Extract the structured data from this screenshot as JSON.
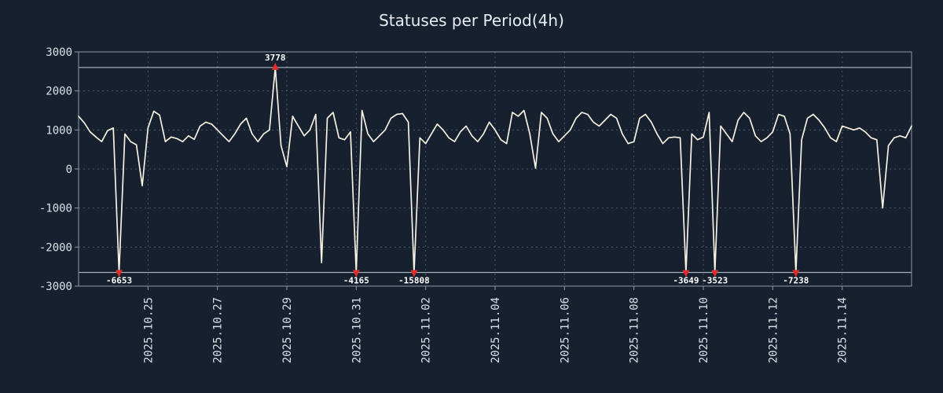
{
  "chart_data": {
    "type": "line",
    "title": "Statuses per Period(4h)",
    "ylim": [
      -3000,
      3000
    ],
    "yticks": [
      -3000,
      -2000,
      -1000,
      0,
      1000,
      2000,
      3000
    ],
    "clip_high": 2600,
    "clip_low": -2650,
    "grid": true,
    "legend": "none",
    "xticks": [
      {
        "index": 12,
        "label": "2025.10.25"
      },
      {
        "index": 24,
        "label": "2025.10.27"
      },
      {
        "index": 36,
        "label": "2025.10.29"
      },
      {
        "index": 48,
        "label": "2025.10.31"
      },
      {
        "index": 60,
        "label": "2025.11.02"
      },
      {
        "index": 72,
        "label": "2025.11.04"
      },
      {
        "index": 84,
        "label": "2025.11.06"
      },
      {
        "index": 96,
        "label": "2025.11.08"
      },
      {
        "index": 108,
        "label": "2025.11.10"
      },
      {
        "index": 120,
        "label": "2025.11.12"
      },
      {
        "index": 132,
        "label": "2025.11.14"
      }
    ],
    "values": [
      1350,
      1180,
      950,
      820,
      700,
      980,
      1050,
      -6653,
      900,
      700,
      620,
      -430,
      1050,
      1480,
      1380,
      700,
      820,
      780,
      700,
      850,
      760,
      1100,
      1200,
      1150,
      1000,
      850,
      700,
      900,
      1150,
      1300,
      900,
      700,
      900,
      1000,
      3778,
      600,
      60,
      1350,
      1100,
      850,
      1000,
      1400,
      -2400,
      1300,
      1450,
      800,
      750,
      950,
      -4165,
      1500,
      900,
      700,
      850,
      1000,
      1300,
      1400,
      1420,
      1200,
      -15808,
      800,
      650,
      900,
      1150,
      1000,
      800,
      700,
      950,
      1100,
      850,
      700,
      900,
      1200,
      1000,
      750,
      650,
      1450,
      1350,
      1500,
      900,
      20,
      1450,
      1300,
      900,
      700,
      850,
      1000,
      1300,
      1450,
      1400,
      1200,
      1100,
      1250,
      1400,
      1300,
      900,
      650,
      700,
      1300,
      1400,
      1200,
      900,
      650,
      800,
      820,
      800,
      -3649,
      900,
      750,
      820,
      1450,
      -3523,
      1100,
      900,
      700,
      1250,
      1450,
      1300,
      850,
      700,
      800,
      950,
      1400,
      1350,
      900,
      -7238,
      750,
      1300,
      1400,
      1250,
      1050,
      800,
      700,
      1100,
      1050,
      1000,
      1050,
      950,
      800,
      750,
      -1000,
      600,
      800,
      850,
      800,
      1100
    ],
    "annotations": [
      {
        "index": 7,
        "value": -6653,
        "label": "-6653",
        "direction": "down"
      },
      {
        "index": 34,
        "value": 3778,
        "label": "3778",
        "direction": "up"
      },
      {
        "index": 48,
        "value": -4165,
        "label": "-4165",
        "direction": "down"
      },
      {
        "index": 58,
        "value": -15808,
        "label": "-15808",
        "direction": "down"
      },
      {
        "index": 105,
        "value": -3649,
        "label": "-3649",
        "direction": "down"
      },
      {
        "index": 110,
        "value": -3523,
        "label": "-3523",
        "direction": "down"
      },
      {
        "index": 124,
        "value": -7238,
        "label": "-7238",
        "direction": "down"
      }
    ],
    "colors": {
      "background": "#16202e",
      "line": "#f6f1e1",
      "marker": "#e12b2b",
      "grid": "#4d5866",
      "border": "#8d99a6",
      "threshold": "#c4ccd4",
      "text": "#d9e0e8",
      "annotation_text": "#ffffff"
    }
  }
}
